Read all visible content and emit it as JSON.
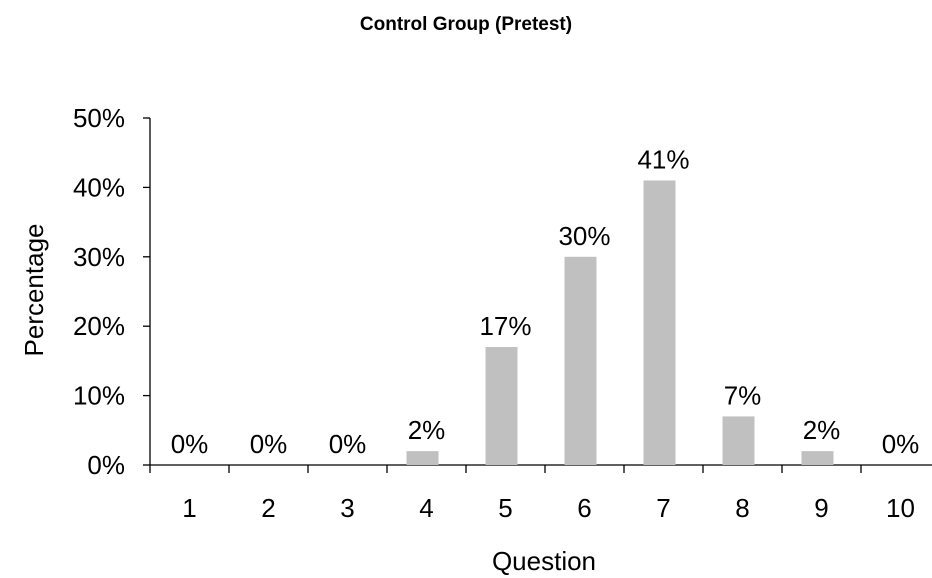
{
  "chart_data": {
    "type": "bar",
    "title": "Control Group (Pretest)",
    "xlabel": "Question",
    "ylabel": "Percentage",
    "categories": [
      "1",
      "2",
      "3",
      "4",
      "5",
      "6",
      "7",
      "8",
      "9",
      "10"
    ],
    "values": [
      0,
      0,
      0,
      2,
      17,
      30,
      41,
      7,
      2,
      0
    ],
    "data_labels": [
      "0%",
      "0%",
      "0%",
      "2%",
      "17%",
      "30%",
      "41%",
      "7%",
      "2%",
      "0%"
    ],
    "yticks": [
      "0%",
      "10%",
      "20%",
      "30%",
      "40%",
      "50%"
    ],
    "ytick_values": [
      0,
      10,
      20,
      30,
      40,
      50
    ],
    "ylim": [
      0,
      50
    ],
    "grid": false,
    "legend": "none",
    "colors": {
      "bar": "#c0c0c0",
      "shadow": "#000000",
      "axis": "#000000"
    }
  }
}
